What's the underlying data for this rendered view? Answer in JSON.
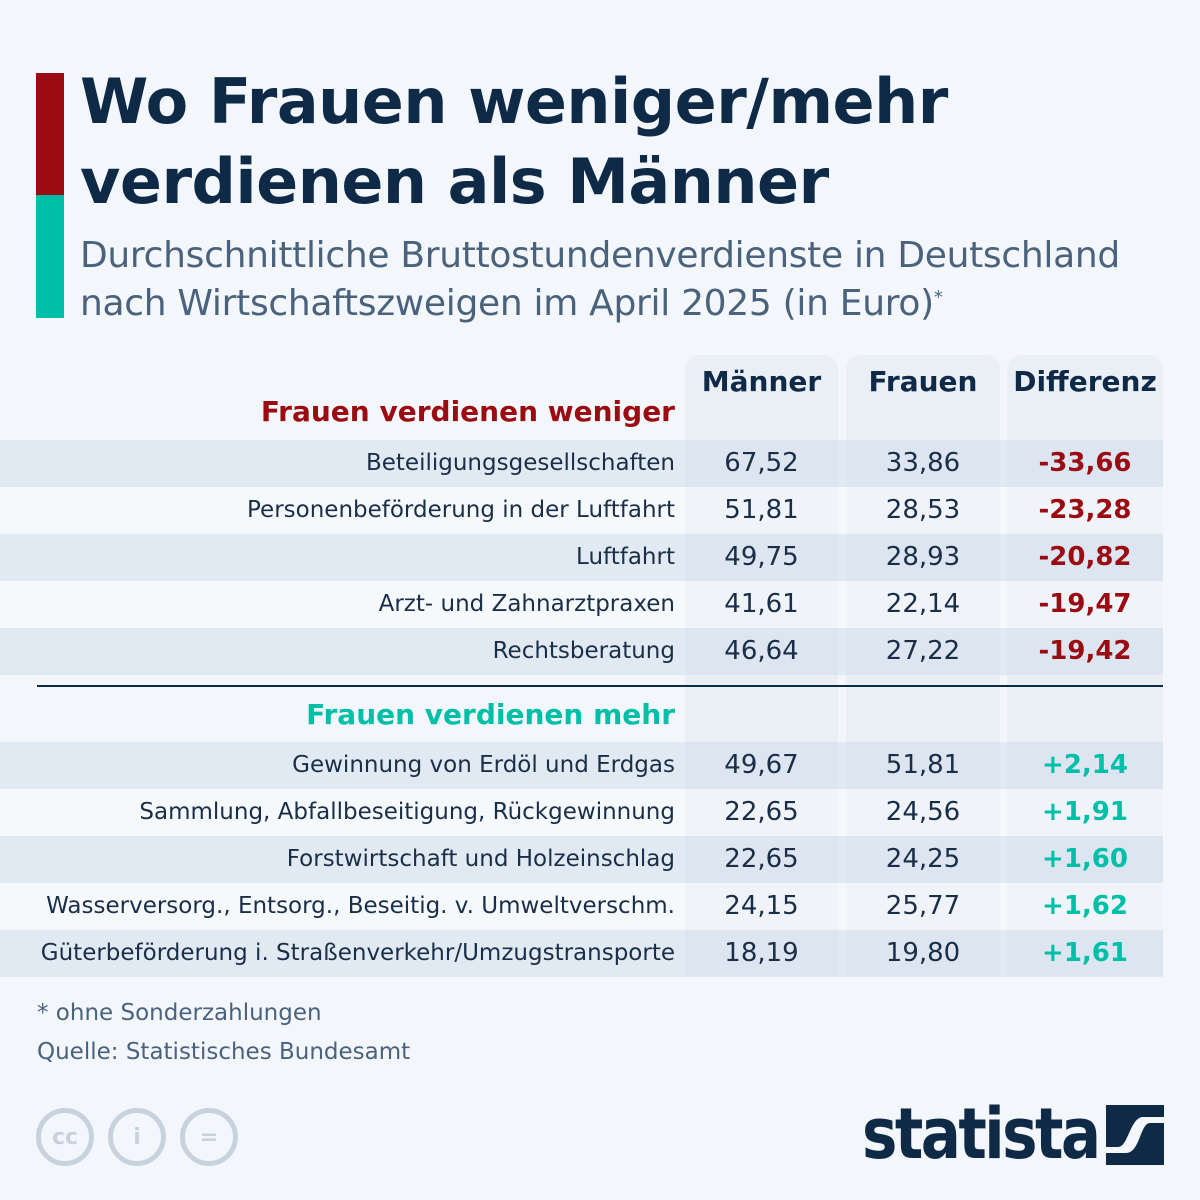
{
  "title": "Wo Frauen weniger/mehr verdienen als Männer",
  "subtitle": "Durchschnittliche Bruttostundenverdienste in Deutschland nach Wirtschaftszweigen im April 2025 (in Euro)",
  "subtitle_marker": "*",
  "colors": {
    "negative": "#9a0b12",
    "positive": "#00bfa8",
    "text": "#0f2a47",
    "background": "#f3f7fb"
  },
  "chart_data": {
    "type": "table",
    "columns": [
      "Männer",
      "Frauen",
      "Differenz"
    ],
    "sections": [
      {
        "label": "Frauen verdienen weniger",
        "rows": [
          {
            "label": "Beteiligungsgesellschaften",
            "maenner": "67,52",
            "frauen": "33,86",
            "differenz": "-33,66"
          },
          {
            "label": "Personenbeförderung in der Luftfahrt",
            "maenner": "51,81",
            "frauen": "28,53",
            "differenz": "-23,28"
          },
          {
            "label": "Luftfahrt",
            "maenner": "49,75",
            "frauen": "28,93",
            "differenz": "-20,82"
          },
          {
            "label": "Arzt- und Zahnarztpraxen",
            "maenner": "41,61",
            "frauen": "22,14",
            "differenz": "-19,47"
          },
          {
            "label": "Rechtsberatung",
            "maenner": "46,64",
            "frauen": "27,22",
            "differenz": "-19,42"
          }
        ]
      },
      {
        "label": "Frauen verdienen mehr",
        "rows": [
          {
            "label": "Gewinnung von Erdöl und Erdgas",
            "maenner": "49,67",
            "frauen": "51,81",
            "differenz": "+2,14"
          },
          {
            "label": "Sammlung, Abfallbeseitigung, Rückgewinnung",
            "maenner": "22,65",
            "frauen": "24,56",
            "differenz": "+1,91"
          },
          {
            "label": "Forstwirtschaft und Holzeinschlag",
            "maenner": "22,65",
            "frauen": "24,25",
            "differenz": "+1,60"
          },
          {
            "label": "Wasserversorg., Entsorg., Beseitig. v. Umweltverschm.",
            "maenner": "24,15",
            "frauen": "25,77",
            "differenz": "+1,62"
          },
          {
            "label": "Güterbeförderung i. Straßenverkehr/Umzugstransporte",
            "maenner": "18,19",
            "frauen": "19,80",
            "differenz": "+1,61"
          }
        ]
      }
    ]
  },
  "footnote": "* ohne Sonderzahlungen",
  "source": "Quelle: Statistisches Bundesamt",
  "license_icons": [
    "cc-icon",
    "attribution-icon",
    "no-derivatives-icon"
  ],
  "license_glyphs": [
    "cc",
    "i",
    "="
  ],
  "logo": "statista"
}
